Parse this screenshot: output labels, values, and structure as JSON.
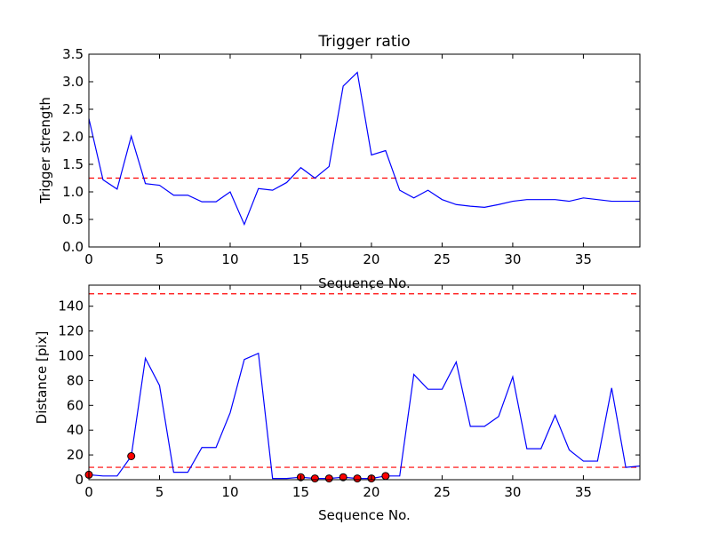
{
  "colors": {
    "line": "#0000ff",
    "threshold": "#ff0000",
    "marker_fill": "#ff0000",
    "marker_edge": "#000000"
  },
  "chart_data": [
    {
      "type": "line",
      "title": "Trigger ratio",
      "xlabel": "Sequence No.",
      "ylabel": "Trigger strength",
      "xlim": [
        0,
        39
      ],
      "ylim": [
        0,
        3.5
      ],
      "xticks": [
        0,
        5,
        10,
        15,
        20,
        25,
        30,
        35
      ],
      "xtick_labels": [
        "0",
        "5",
        "10",
        "15",
        "20",
        "25",
        "30",
        "35"
      ],
      "yticks": [
        0,
        0.5,
        1.0,
        1.5,
        2.0,
        2.5,
        3.0,
        3.5
      ],
      "ytick_labels": [
        "0.0",
        "0.5",
        "1.0",
        "1.5",
        "2.0",
        "2.5",
        "3.0",
        "3.5"
      ],
      "grid": false,
      "series": [
        {
          "x": [
            0,
            1,
            2,
            3,
            4,
            5,
            6,
            7,
            8,
            9,
            10,
            11,
            12,
            13,
            14,
            15,
            16,
            17,
            18,
            19,
            20,
            21,
            22,
            23,
            24,
            25,
            26,
            27,
            28,
            29,
            30,
            31,
            32,
            33,
            34,
            35,
            36,
            37,
            38,
            39
          ],
          "values": [
            2.33,
            1.22,
            1.05,
            2.01,
            1.15,
            1.12,
            0.94,
            0.94,
            0.82,
            0.82,
            1.0,
            0.41,
            1.06,
            1.03,
            1.17,
            1.44,
            1.25,
            1.46,
            2.92,
            3.17,
            1.67,
            1.75,
            1.03,
            0.89,
            1.03,
            0.86,
            0.77,
            0.74,
            0.72,
            0.77,
            0.83,
            0.86,
            0.86,
            0.86,
            0.83,
            0.89,
            0.86,
            0.83,
            0.83,
            0.83
          ]
        }
      ],
      "thresholds": [
        1.25
      ]
    },
    {
      "type": "line",
      "title": "",
      "xlabel": "Sequence No.",
      "ylabel": "Distance [pix]",
      "xlim": [
        0,
        39
      ],
      "ylim": [
        0,
        157
      ],
      "xticks": [
        0,
        5,
        10,
        15,
        20,
        25,
        30,
        35
      ],
      "xtick_labels": [
        "0",
        "5",
        "10",
        "15",
        "20",
        "25",
        "30",
        "35"
      ],
      "yticks": [
        0,
        20,
        40,
        60,
        80,
        100,
        120,
        140
      ],
      "ytick_labels": [
        "0",
        "20",
        "40",
        "60",
        "80",
        "100",
        "120",
        "140"
      ],
      "grid": false,
      "series": [
        {
          "x": [
            0,
            1,
            2,
            3,
            4,
            5,
            6,
            7,
            8,
            9,
            10,
            11,
            12,
            13,
            14,
            15,
            16,
            17,
            18,
            19,
            20,
            21,
            22,
            23,
            24,
            25,
            26,
            27,
            28,
            29,
            30,
            31,
            32,
            33,
            34,
            35,
            36,
            37,
            38,
            39
          ],
          "values": [
            4,
            3,
            3,
            19,
            98,
            76,
            6,
            6,
            26,
            26,
            54,
            97,
            102,
            1,
            1,
            2,
            1,
            1,
            2,
            1,
            1,
            3,
            3,
            85,
            73,
            73,
            95,
            43,
            43,
            51,
            83,
            25,
            25,
            52,
            24,
            15,
            15,
            74,
            10,
            11
          ]
        }
      ],
      "markers": {
        "x": [
          0,
          3,
          15,
          16,
          17,
          18,
          19,
          20,
          21
        ],
        "values": [
          4,
          19,
          2,
          1,
          1,
          2,
          1,
          1,
          3
        ]
      },
      "thresholds": [
        150,
        10
      ]
    }
  ]
}
